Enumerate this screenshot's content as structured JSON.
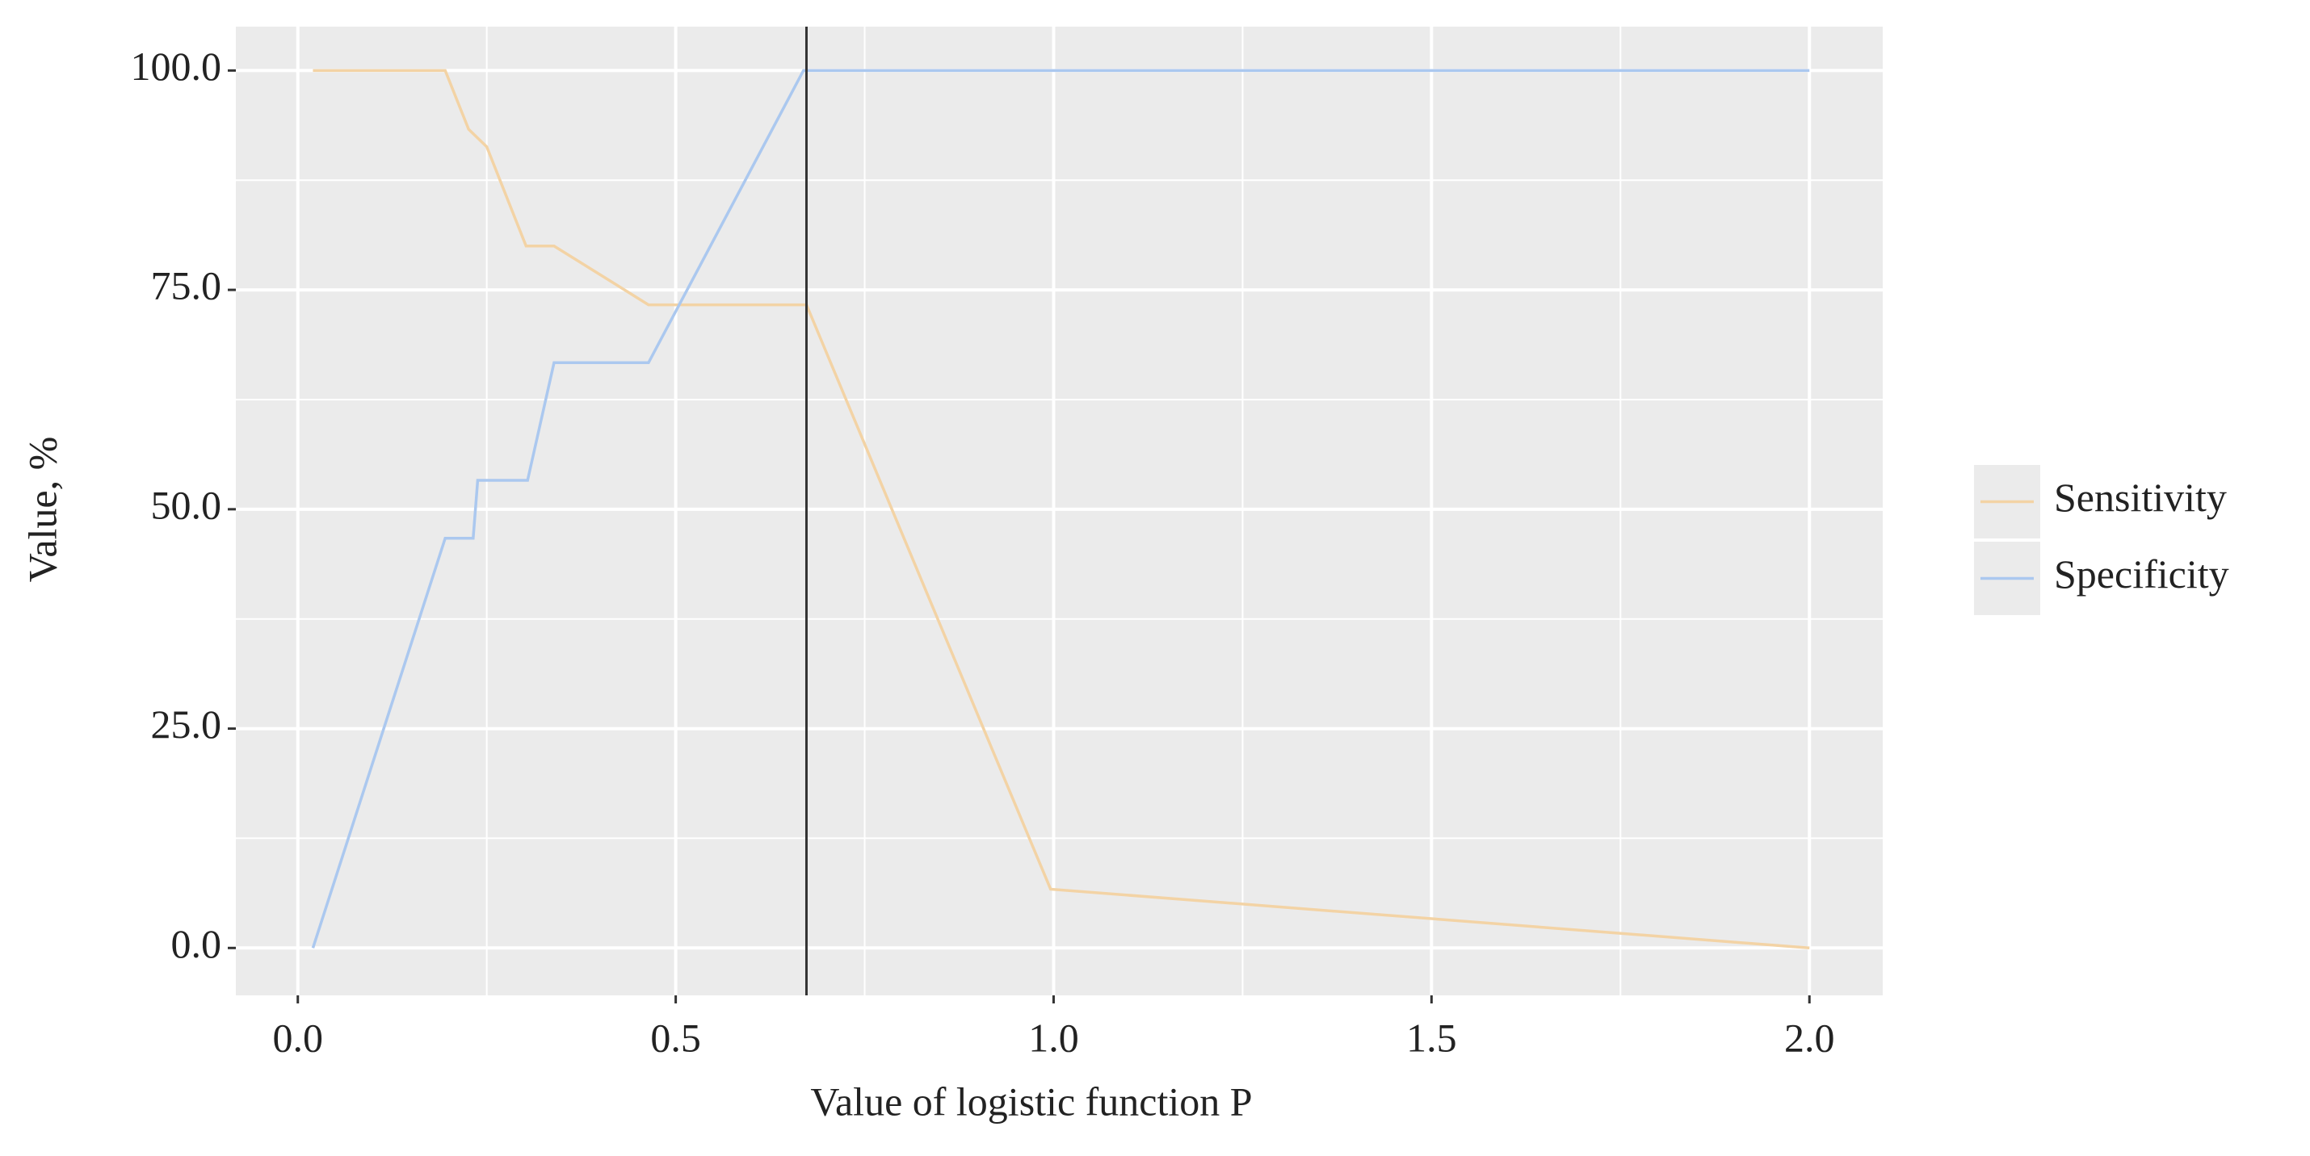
{
  "chart_data": {
    "type": "line",
    "x_label": "Value of logistic function P",
    "y_label": "Value, %",
    "xlim": [
      -0.082,
      2.097
    ],
    "ylim": [
      -5.4,
      105.0
    ],
    "xticks": [
      {
        "value": 0,
        "label": "0.0"
      },
      {
        "value": 0.5,
        "label": "0.5"
      },
      {
        "value": 1,
        "label": "1.0"
      },
      {
        "value": 1.5,
        "label": "1.5"
      },
      {
        "value": 2,
        "label": "2.0"
      }
    ],
    "yticks": [
      {
        "value": 0,
        "label": "0.0"
      },
      {
        "value": 25,
        "label": "25.0"
      },
      {
        "value": 50,
        "label": "50.0"
      },
      {
        "value": 75,
        "label": "75.0"
      },
      {
        "value": 100,
        "label": "100.0"
      }
    ],
    "grid": true,
    "minor_grid": true,
    "legend": "right",
    "vline": 0.673,
    "vline_color": "#333333",
    "series": [
      {
        "name": "Sensitivity",
        "color": "#f3d3a5",
        "x": [
          0.02,
          0.195,
          0.226,
          0.25,
          0.302,
          0.339,
          0.464,
          0.673,
          0.996,
          2.0
        ],
        "values": [
          100,
          100,
          93.3,
          91.3,
          80,
          80,
          73.3,
          73.3,
          6.7,
          0
        ]
      },
      {
        "name": "Specificity",
        "color": "#abc8ef",
        "x": [
          0.02,
          0.195,
          0.232,
          0.238,
          0.304,
          0.339,
          0.464,
          0.669,
          2.0
        ],
        "values": [
          0,
          46.7,
          46.7,
          53.3,
          53.3,
          66.7,
          66.7,
          100,
          100
        ]
      }
    ]
  }
}
